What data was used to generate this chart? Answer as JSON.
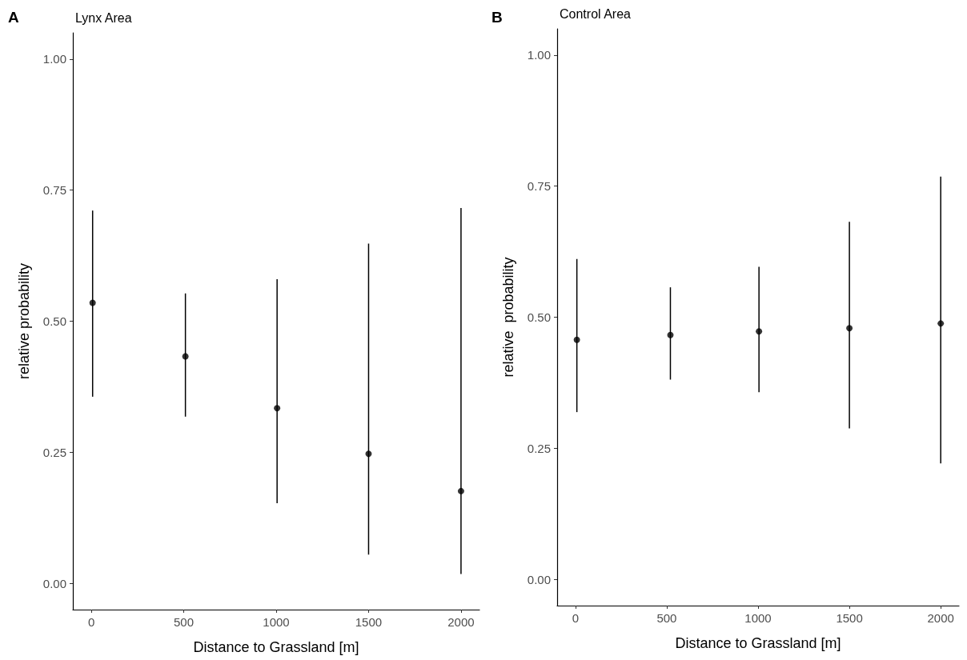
{
  "chart_data": [
    {
      "type": "scatter",
      "title": "Lynx Area",
      "annotations": [
        "A"
      ],
      "xlabel": "Distance to Grassland [m]",
      "ylabel": "relative probability",
      "x": [
        7,
        509,
        1005,
        1500,
        2000
      ],
      "series": [
        {
          "color": "#000000",
          "values": [
            0.535,
            0.433,
            0.334,
            0.247,
            0.176
          ],
          "errors": [
            [
              0.356,
              0.711
            ],
            [
              0.318,
              0.553
            ],
            [
              0.153,
              0.58
            ],
            [
              0.055,
              0.648
            ],
            [
              0.018,
              0.716
            ]
          ]
        }
      ],
      "xlim": [
        -100,
        2100
      ],
      "xticks": [
        0,
        500,
        1000,
        1500,
        2000
      ],
      "ylim": [
        -0.05,
        1.05
      ],
      "yticks": [
        {
          "value": 0,
          "label": "0.00"
        },
        {
          "value": 0.25,
          "label": "0.25"
        },
        {
          "value": 0.5,
          "label": "0.50"
        },
        {
          "value": 0.75,
          "label": "0.75"
        },
        {
          "value": 1,
          "label": "1.00"
        }
      ],
      "grid": false,
      "legend": false,
      "marker": "circle"
    },
    {
      "type": "scatter",
      "title": "Control Area",
      "annotations": [
        "B"
      ],
      "xlabel": "Distance to Grassland [m]",
      "ylabel": "relative  probability",
      "x": [
        8,
        520,
        1005,
        1500,
        2000
      ],
      "series": [
        {
          "color": "#000000",
          "values": [
            0.457,
            0.466,
            0.473,
            0.479,
            0.488
          ],
          "errors": [
            [
              0.319,
              0.611
            ],
            [
              0.381,
              0.557
            ],
            [
              0.357,
              0.596
            ],
            [
              0.288,
              0.682
            ],
            [
              0.221,
              0.768
            ]
          ]
        }
      ],
      "xlim": [
        -100,
        2100
      ],
      "xticks": [
        0,
        500,
        1000,
        1500,
        2000
      ],
      "ylim": [
        -0.05,
        1.05
      ],
      "yticks": [
        {
          "value": 0,
          "label": "0.00"
        },
        {
          "value": 0.25,
          "label": "0.25"
        },
        {
          "value": 0.5,
          "label": "0.50"
        },
        {
          "value": 0.75,
          "label": "0.75"
        },
        {
          "value": 1,
          "label": "1.00"
        }
      ],
      "grid": false,
      "legend": false,
      "marker": "circle"
    }
  ]
}
